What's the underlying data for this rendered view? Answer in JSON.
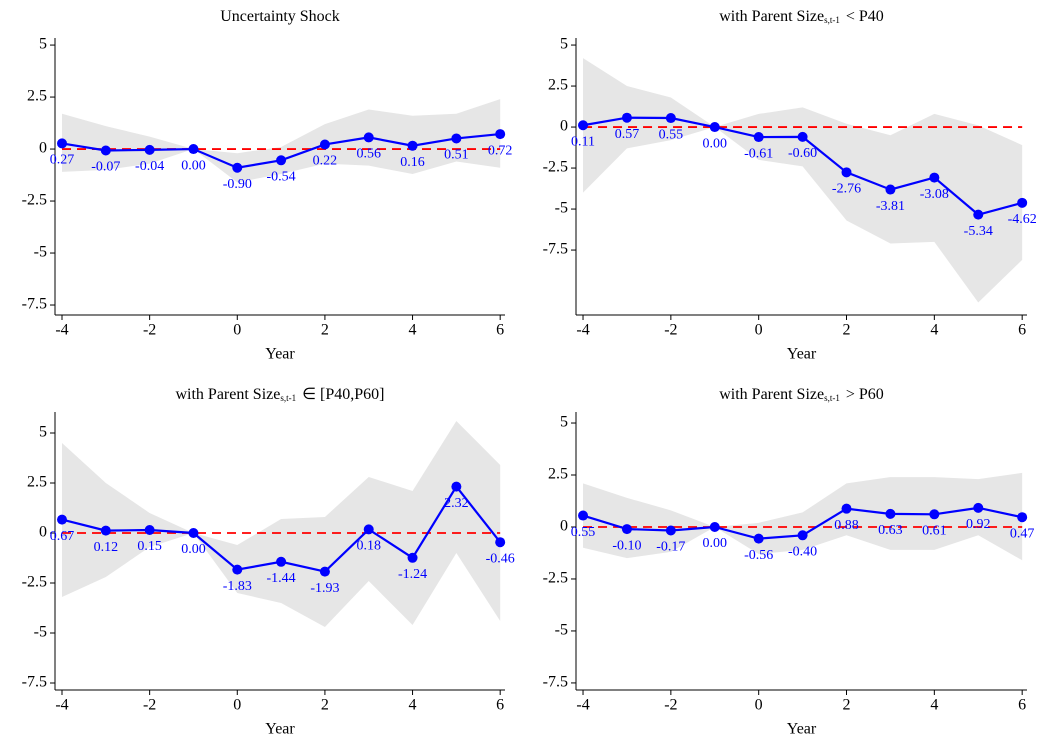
{
  "chart_data": [
    {
      "type": "line",
      "title": "Uncertainty Shock",
      "xlabel": "Year",
      "x": [
        -4,
        -3,
        -2,
        -1,
        0,
        1,
        2,
        3,
        4,
        5,
        6
      ],
      "values": [
        0.27,
        -0.07,
        -0.04,
        0,
        -0.9,
        -0.54,
        0.22,
        0.56,
        0.16,
        0.51,
        0.72
      ],
      "value_labels": [
        "0.27",
        "-0.07",
        "-0.04",
        "0.00",
        "-0.90",
        "-0.54",
        "0.22",
        "0.56",
        "0.16",
        "0.51",
        "0.72"
      ],
      "ci_lower": [
        -1.1,
        -1.0,
        -0.7,
        0,
        -1.6,
        -1.2,
        -0.7,
        -0.8,
        -1.2,
        -0.6,
        -0.9
      ],
      "ci_upper": [
        1.7,
        1.1,
        0.6,
        0,
        -0.2,
        0.1,
        1.2,
        1.9,
        1.6,
        1.7,
        2.4
      ],
      "reference_line": 0,
      "color": "#0000ff",
      "band_color": "#e6e6e6",
      "reference_color": "#ff0000",
      "xlim": [
        -4.16,
        6.11
      ],
      "xticks": [
        -4,
        -2,
        0,
        2,
        4,
        6
      ],
      "ylim": [
        -7.98,
        5.34
      ],
      "yticks": [
        5,
        2.5,
        0,
        -2.5,
        -5,
        -7.5
      ]
    },
    {
      "type": "line",
      "title": "with Parent Size",
      "title_subscript": "s,t-1",
      "title_suffix": "< P40",
      "xlabel": "Year",
      "x": [
        -4,
        -3,
        -2,
        -1,
        0,
        1,
        2,
        3,
        4,
        5,
        6
      ],
      "values": [
        0.11,
        0.57,
        0.55,
        0,
        -0.61,
        -0.6,
        -2.76,
        -3.81,
        -3.08,
        -5.34,
        -4.62
      ],
      "value_labels": [
        "0.11",
        "0.57",
        "0.55",
        "0.00",
        "-0.61",
        "-0.60",
        "-2.76",
        "-3.81",
        "-3.08",
        "-5.34",
        "-4.62"
      ],
      "ci_lower": [
        -4.0,
        -1.3,
        -0.8,
        0,
        -2.0,
        -2.4,
        -5.7,
        -7.1,
        -7.0,
        -10.7,
        -8.1
      ],
      "ci_upper": [
        4.2,
        2.5,
        1.8,
        0,
        0.8,
        1.2,
        0.2,
        -0.5,
        0.8,
        0.1,
        -1.1
      ],
      "reference_line": 0,
      "color": "#0000ff",
      "band_color": "#e6e6e6",
      "reference_color": "#ff0000",
      "xlim": [
        -4.16,
        6.11
      ],
      "xticks": [
        -4,
        -2,
        0,
        2,
        4,
        6
      ],
      "ylim": [
        -11.46,
        5.43
      ],
      "yticks": [
        5,
        2.5,
        0,
        -2.5,
        -5,
        -7.5
      ]
    },
    {
      "type": "line",
      "title": "with Parent Size",
      "title_subscript": "s,t-1",
      "title_suffix": "∈ [P40,P60]",
      "xlabel": "Year",
      "x": [
        -4,
        -3,
        -2,
        -1,
        0,
        1,
        2,
        3,
        4,
        5,
        6
      ],
      "values": [
        0.67,
        0.12,
        0.15,
        0,
        -1.83,
        -1.44,
        -1.93,
        0.18,
        -1.24,
        2.32,
        -0.46
      ],
      "value_labels": [
        "0.67",
        "0.12",
        "0.15",
        "0.00",
        "-1.83",
        "-1.44",
        "-1.93",
        "0.18",
        "-1.24",
        "2.32",
        "-0.46"
      ],
      "ci_lower": [
        -3.2,
        -2.2,
        -0.7,
        0,
        -3.0,
        -3.5,
        -4.7,
        -2.4,
        -4.6,
        -1.0,
        -4.4
      ],
      "ci_upper": [
        4.5,
        2.5,
        1.0,
        0,
        -0.6,
        0.7,
        0.8,
        2.8,
        2.1,
        5.6,
        3.4
      ],
      "reference_line": 0,
      "color": "#0000ff",
      "band_color": "#e6e6e6",
      "reference_color": "#ff0000",
      "xlim": [
        -4.16,
        6.11
      ],
      "xticks": [
        -4,
        -2,
        0,
        2,
        4,
        6
      ],
      "ylim": [
        -7.85,
        6.05
      ],
      "yticks": [
        5,
        2.5,
        0,
        -2.5,
        -5,
        -7.5
      ]
    },
    {
      "type": "line",
      "title": "with Parent Size",
      "title_subscript": "s,t-1",
      "title_suffix": "> P60",
      "xlabel": "Year",
      "x": [
        -4,
        -3,
        -2,
        -1,
        0,
        1,
        2,
        3,
        4,
        5,
        6
      ],
      "values": [
        0.55,
        -0.1,
        -0.17,
        0,
        -0.56,
        -0.4,
        0.88,
        0.63,
        0.61,
        0.92,
        0.47
      ],
      "value_labels": [
        "0.55",
        "-0.10",
        "-0.17",
        "0.00",
        "-0.56",
        "-0.40",
        "0.88",
        "0.63",
        "0.61",
        "0.92",
        "0.47"
      ],
      "ci_lower": [
        -1.0,
        -1.5,
        -1.2,
        0,
        -1.3,
        -1.1,
        -0.4,
        -1.1,
        -1.1,
        -0.4,
        -1.6
      ],
      "ci_upper": [
        2.1,
        1.4,
        0.8,
        0,
        0.2,
        0.7,
        2.1,
        2.4,
        2.4,
        2.3,
        2.6
      ],
      "reference_line": 0,
      "color": "#0000ff",
      "band_color": "#e6e6e6",
      "reference_color": "#ff0000",
      "xlim": [
        -4.16,
        6.11
      ],
      "xticks": [
        -4,
        -2,
        0,
        2,
        4,
        6
      ],
      "ylim": [
        -7.84,
        5.53
      ],
      "yticks": [
        5,
        2.5,
        0,
        -2.5,
        -5,
        -7.5
      ]
    }
  ]
}
